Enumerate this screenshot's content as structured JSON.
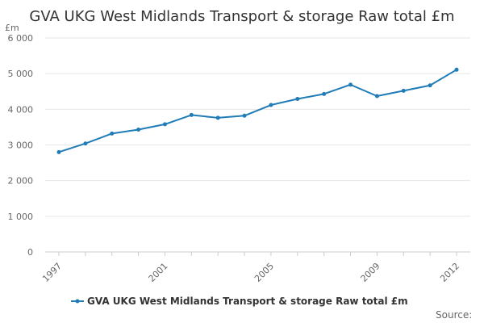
{
  "chart_data": {
    "type": "line",
    "title": "GVA UKG West Midlands Transport & storage Raw total £m",
    "ylabel": "£m",
    "xlabel": "",
    "x": [
      1997,
      1998,
      1999,
      2000,
      2001,
      2002,
      2003,
      2004,
      2005,
      2006,
      2007,
      2008,
      2009,
      2010,
      2011,
      2012
    ],
    "x_tick_labels": [
      "1997",
      "2001",
      "2005",
      "2009",
      "2012"
    ],
    "x_tick_values": [
      1997,
      2001,
      2005,
      2009,
      2012
    ],
    "y_tick_labels": [
      "0",
      "1 000",
      "2 000",
      "3 000",
      "4 000",
      "5 000",
      "6 000"
    ],
    "y_tick_values": [
      0,
      1000,
      2000,
      3000,
      4000,
      5000,
      6000
    ],
    "ylim": [
      0,
      6000
    ],
    "xlim": [
      1997,
      2012
    ],
    "grid": true,
    "legend_position": "bottom",
    "series": [
      {
        "name": "GVA UKG West Midlands Transport & storage Raw total £m",
        "color": "#1f7cb7",
        "values": [
          2800,
          3040,
          3320,
          3430,
          3580,
          3840,
          3760,
          3820,
          4120,
          4290,
          4430,
          4690,
          4370,
          4520,
          4670,
          5110
        ]
      }
    ],
    "source": "Source:"
  }
}
